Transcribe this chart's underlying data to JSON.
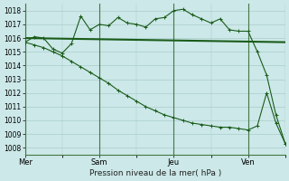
{
  "background_color": "#cce8e8",
  "grid_color": "#aacccc",
  "line_color": "#1a5c1a",
  "title": "Pression niveau de la mer( hPa )",
  "ylim": [
    1007.5,
    1018.5
  ],
  "yticks": [
    1008,
    1009,
    1010,
    1011,
    1012,
    1013,
    1014,
    1015,
    1016,
    1017,
    1018
  ],
  "day_labels": [
    "Mer",
    "Sam",
    "Jeu",
    "Ven"
  ],
  "day_positions": [
    0,
    8,
    16,
    24
  ],
  "xlim": [
    0,
    28
  ],
  "line1_x": [
    0,
    1,
    2,
    3,
    4,
    5,
    6,
    7,
    8,
    9,
    10,
    11,
    12,
    13,
    14,
    15,
    16,
    17,
    18,
    19,
    20,
    21,
    22,
    23,
    24,
    25,
    26,
    27,
    28
  ],
  "line1_y": [
    1015.7,
    1016.1,
    1016.0,
    1015.2,
    1014.9,
    1015.6,
    1017.6,
    1016.6,
    1017.0,
    1016.9,
    1017.5,
    1017.1,
    1017.0,
    1016.8,
    1017.4,
    1017.5,
    1018.0,
    1018.1,
    1017.7,
    1017.4,
    1017.1,
    1017.4,
    1016.6,
    1016.5,
    1016.5,
    1015.0,
    1013.3,
    1010.4,
    1008.3
  ],
  "line2_x": [
    0,
    28
  ],
  "line2_y": [
    1016.0,
    1015.7
  ],
  "line3_x": [
    0,
    1,
    2,
    3,
    4,
    5,
    6,
    7,
    8,
    9,
    10,
    11,
    12,
    13,
    14,
    15,
    16,
    17,
    18,
    19,
    20,
    21,
    22,
    23,
    24,
    25,
    26,
    27,
    28
  ],
  "line3_y": [
    1015.7,
    1015.5,
    1015.3,
    1015.0,
    1014.7,
    1014.3,
    1013.9,
    1013.5,
    1013.1,
    1012.7,
    1012.2,
    1011.8,
    1011.4,
    1011.0,
    1010.7,
    1010.4,
    1010.2,
    1010.0,
    1009.8,
    1009.7,
    1009.6,
    1009.5,
    1009.5,
    1009.4,
    1009.3,
    1009.6,
    1012.0,
    1009.8,
    1008.3
  ],
  "title_fontsize": 6.5,
  "tick_fontsize": 5.5,
  "xlabel_fontsize": 6.0
}
